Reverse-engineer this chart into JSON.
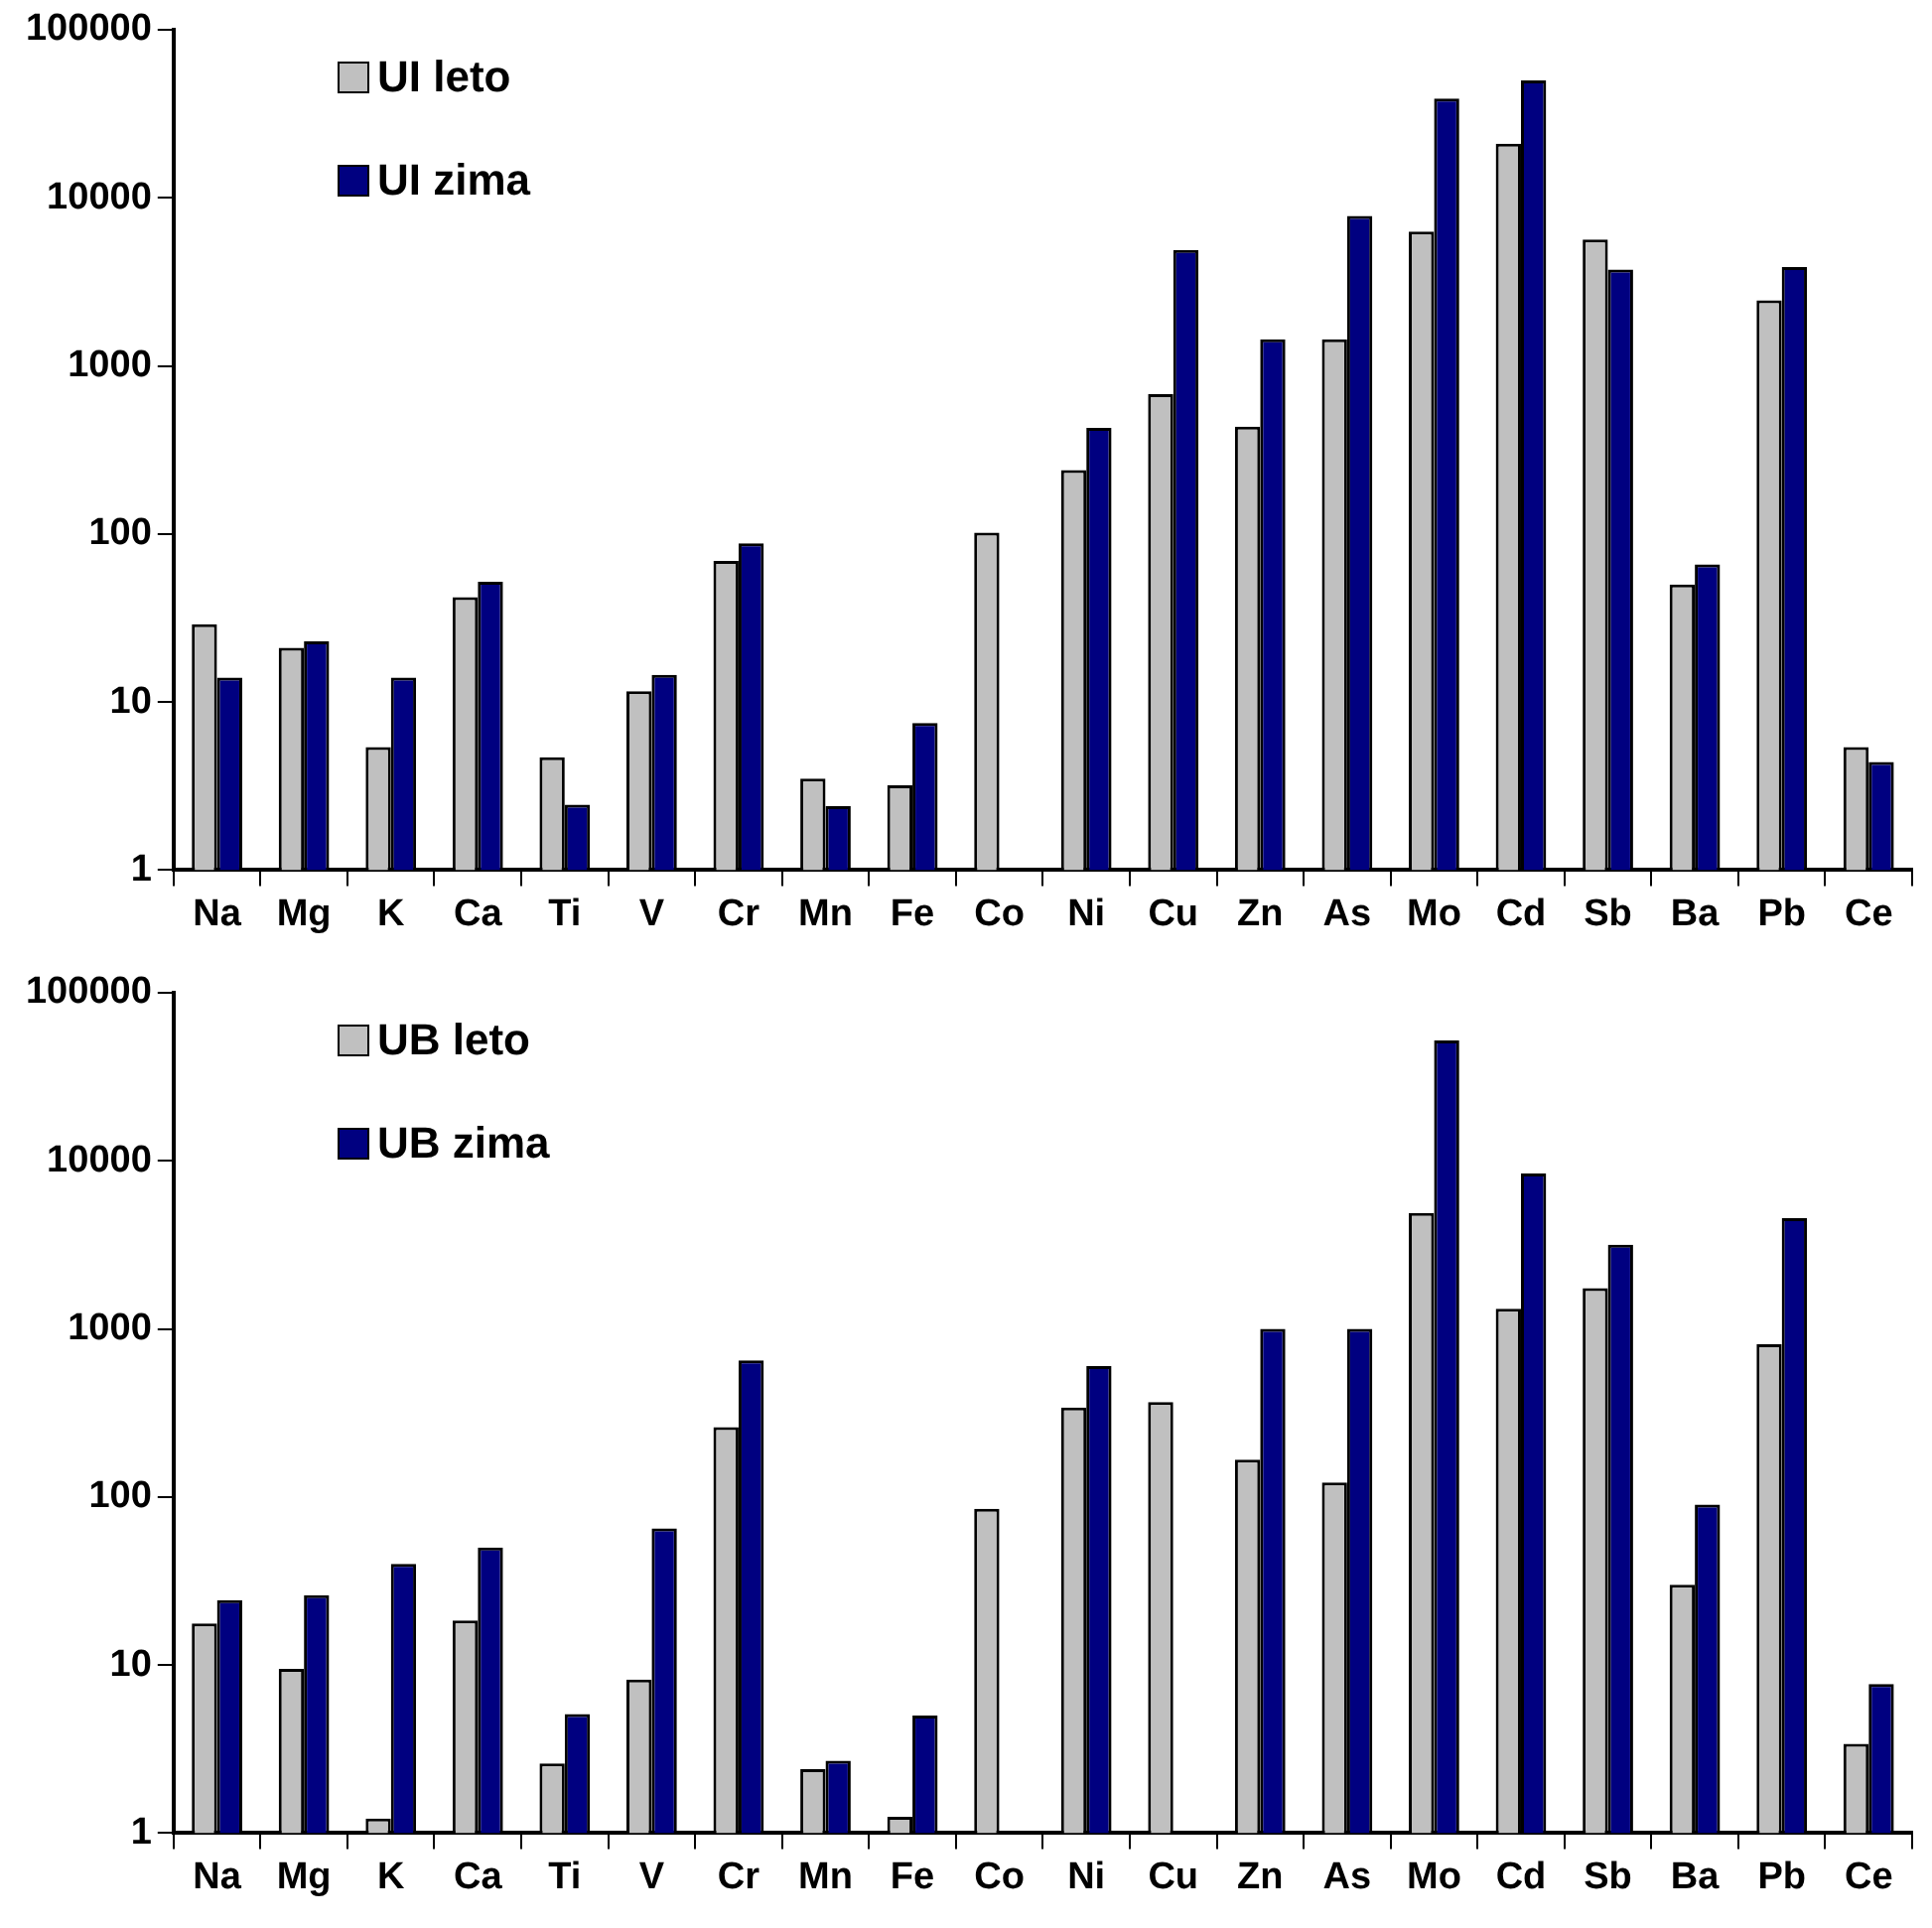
{
  "chart_data": [
    {
      "type": "bar",
      "log": "y",
      "categories": [
        "Na",
        "Mg",
        "K",
        "Ca",
        "Ti",
        "V",
        "Cr",
        "Mn",
        "Fe",
        "Co",
        "Ni",
        "Cu",
        "Zn",
        "As",
        "Mo",
        "Cd",
        "Sb",
        "Ba",
        "Pb",
        "Ce"
      ],
      "ylim": [
        1,
        100000
      ],
      "yticks": [
        1,
        10,
        100,
        1000,
        10000,
        100000
      ],
      "grid": false,
      "legend": "top left",
      "series": [
        {
          "name": "UI leto",
          "color": "#c0c0c0",
          "values": [
            29,
            21,
            5.4,
            42,
            4.7,
            11.6,
            69,
            3.5,
            3.2,
            102,
            240,
            680,
            435,
            1440,
            6300,
            21000,
            5650,
            50,
            2460,
            5.4
          ]
        },
        {
          "name": "UI zima",
          "color": "#000080",
          "values": [
            14,
            23,
            14,
            52,
            2.45,
            14.5,
            88,
            2.4,
            7.5,
            null,
            427,
            4900,
            1440,
            7800,
            39000,
            50000,
            3750,
            66,
            3875,
            4.4
          ]
        }
      ]
    },
    {
      "type": "bar",
      "log": "y",
      "categories": [
        "Na",
        "Mg",
        "K",
        "Ca",
        "Ti",
        "V",
        "Cr",
        "Mn",
        "Fe",
        "Co",
        "Ni",
        "Cu",
        "Zn",
        "As",
        "Mo",
        "Cd",
        "Sb",
        "Ba",
        "Pb",
        "Ce"
      ],
      "ylim": [
        1,
        100000
      ],
      "yticks": [
        1,
        10,
        100,
        1000,
        10000,
        100000
      ],
      "grid": false,
      "legend": "top left",
      "series": [
        {
          "name": "UB leto",
          "color": "#c0c0c0",
          "values": [
            17.7,
            9.5,
            1.22,
            18.4,
            2.6,
            8.2,
            260,
            2.4,
            1.25,
            85,
            340,
            367,
            167,
            122,
            4900,
            1320,
            1750,
            30,
            810,
            3.4
          ]
        },
        {
          "name": "UB zima",
          "color": "#000080",
          "values": [
            24.3,
            26,
            40,
            50,
            5.1,
            65,
            650,
            2.7,
            5.0,
            null,
            600,
            null,
            1000,
            1000,
            52000,
            8400,
            3170,
            90,
            4560,
            7.7
          ]
        }
      ]
    }
  ]
}
